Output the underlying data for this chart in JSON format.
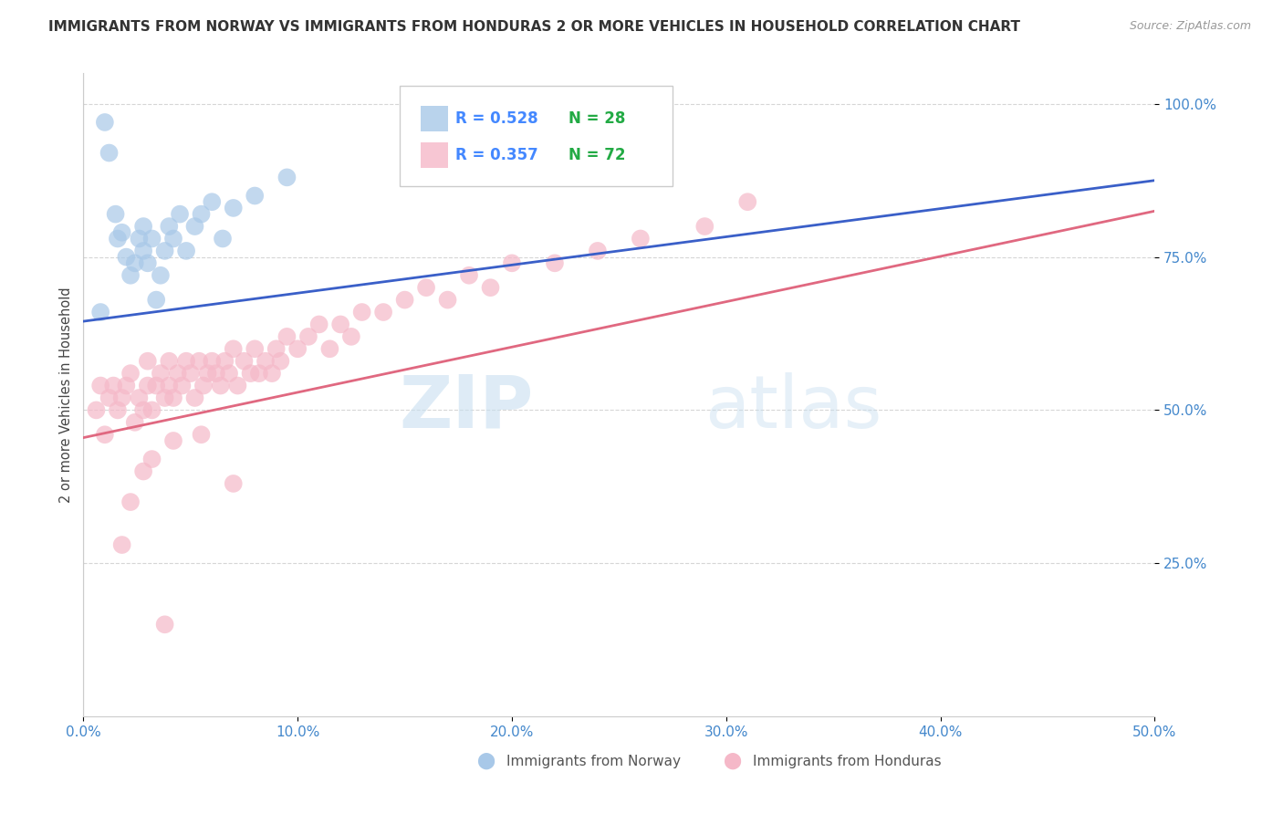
{
  "title": "IMMIGRANTS FROM NORWAY VS IMMIGRANTS FROM HONDURAS 2 OR MORE VEHICLES IN HOUSEHOLD CORRELATION CHART",
  "source": "Source: ZipAtlas.com",
  "ylabel": "2 or more Vehicles in Household",
  "xlim": [
    0.0,
    0.5
  ],
  "ylim": [
    0.0,
    1.05
  ],
  "xtick_labels": [
    "0.0%",
    "10.0%",
    "20.0%",
    "30.0%",
    "40.0%",
    "50.0%"
  ],
  "xtick_vals": [
    0.0,
    0.1,
    0.2,
    0.3,
    0.4,
    0.5
  ],
  "ytick_labels": [
    "25.0%",
    "50.0%",
    "75.0%",
    "100.0%"
  ],
  "ytick_vals": [
    0.25,
    0.5,
    0.75,
    1.0
  ],
  "norway_color": "#a8c8e8",
  "honduras_color": "#f5b8c8",
  "norway_R": 0.528,
  "norway_N": 28,
  "honduras_R": 0.357,
  "honduras_N": 72,
  "norway_line_color": "#3a5fc8",
  "honduras_line_color": "#e06880",
  "legend_R_color": "#4488ff",
  "legend_N_color": "#22aa44",
  "norway_scatter_x": [
    0.008,
    0.01,
    0.012,
    0.015,
    0.016,
    0.018,
    0.02,
    0.022,
    0.024,
    0.026,
    0.028,
    0.028,
    0.03,
    0.032,
    0.034,
    0.036,
    0.038,
    0.04,
    0.042,
    0.045,
    0.048,
    0.052,
    0.055,
    0.06,
    0.065,
    0.07,
    0.08,
    0.095
  ],
  "norway_scatter_y": [
    0.66,
    0.97,
    0.92,
    0.82,
    0.78,
    0.79,
    0.75,
    0.72,
    0.74,
    0.78,
    0.76,
    0.8,
    0.74,
    0.78,
    0.68,
    0.72,
    0.76,
    0.8,
    0.78,
    0.82,
    0.76,
    0.8,
    0.82,
    0.84,
    0.78,
    0.83,
    0.85,
    0.88
  ],
  "honduras_scatter_x": [
    0.006,
    0.008,
    0.01,
    0.012,
    0.014,
    0.016,
    0.018,
    0.02,
    0.022,
    0.024,
    0.026,
    0.028,
    0.03,
    0.03,
    0.032,
    0.034,
    0.036,
    0.038,
    0.04,
    0.04,
    0.042,
    0.044,
    0.046,
    0.048,
    0.05,
    0.052,
    0.054,
    0.056,
    0.058,
    0.06,
    0.062,
    0.064,
    0.066,
    0.068,
    0.07,
    0.072,
    0.075,
    0.078,
    0.08,
    0.082,
    0.085,
    0.088,
    0.09,
    0.092,
    0.095,
    0.1,
    0.105,
    0.11,
    0.115,
    0.12,
    0.125,
    0.13,
    0.14,
    0.15,
    0.16,
    0.17,
    0.18,
    0.19,
    0.2,
    0.22,
    0.24,
    0.26,
    0.29,
    0.31,
    0.018,
    0.022,
    0.028,
    0.032,
    0.038,
    0.042,
    0.055,
    0.07
  ],
  "honduras_scatter_y": [
    0.5,
    0.54,
    0.46,
    0.52,
    0.54,
    0.5,
    0.52,
    0.54,
    0.56,
    0.48,
    0.52,
    0.5,
    0.54,
    0.58,
    0.5,
    0.54,
    0.56,
    0.52,
    0.54,
    0.58,
    0.52,
    0.56,
    0.54,
    0.58,
    0.56,
    0.52,
    0.58,
    0.54,
    0.56,
    0.58,
    0.56,
    0.54,
    0.58,
    0.56,
    0.6,
    0.54,
    0.58,
    0.56,
    0.6,
    0.56,
    0.58,
    0.56,
    0.6,
    0.58,
    0.62,
    0.6,
    0.62,
    0.64,
    0.6,
    0.64,
    0.62,
    0.66,
    0.66,
    0.68,
    0.7,
    0.68,
    0.72,
    0.7,
    0.74,
    0.74,
    0.76,
    0.78,
    0.8,
    0.84,
    0.28,
    0.35,
    0.4,
    0.42,
    0.15,
    0.45,
    0.46,
    0.38
  ],
  "watermark_zip": "ZIP",
  "watermark_atlas": "atlas",
  "background_color": "#ffffff",
  "grid_color": "#cccccc",
  "norway_line_x0": 0.0,
  "norway_line_y0": 0.645,
  "norway_line_x1": 0.5,
  "norway_line_y1": 0.875,
  "honduras_line_x0": 0.0,
  "honduras_line_y0": 0.455,
  "honduras_line_x1": 0.5,
  "honduras_line_y1": 0.825
}
